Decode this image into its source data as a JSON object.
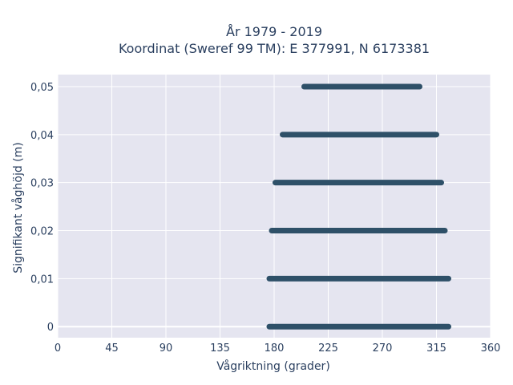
{
  "chart_data": {
    "type": "scatter",
    "title": "År 1979 - 2019",
    "subtitle": "Koordinat (Sweref 99 TM): E 377991, N 6173381",
    "xlabel": "Vågriktning (grader)",
    "ylabel": "Signifikant våghöjd (m)",
    "xlim": [
      0,
      360
    ],
    "ylim": [
      -0.0023,
      0.0525
    ],
    "x_ticks": [
      0,
      45,
      90,
      135,
      180,
      225,
      270,
      315,
      360
    ],
    "x_tick_labels": [
      "0",
      "45",
      "90",
      "135",
      "180",
      "225",
      "270",
      "315",
      "360"
    ],
    "y_ticks": [
      0,
      0.01,
      0.02,
      0.03,
      0.04,
      0.05
    ],
    "y_tick_labels": [
      "0",
      "0,01",
      "0,02",
      "0,03",
      "0,04",
      "0,05"
    ],
    "grid": true,
    "marker_color": "#2e5068",
    "bands": [
      {
        "y": 0,
        "x_min": 176,
        "x_max": 325
      },
      {
        "y": 0.01,
        "x_min": 176,
        "x_max": 325
      },
      {
        "y": 0.02,
        "x_min": 178,
        "x_max": 322
      },
      {
        "y": 0.03,
        "x_min": 181,
        "x_max": 319
      },
      {
        "y": 0.04,
        "x_min": 187,
        "x_max": 315
      },
      {
        "y": 0.05,
        "x_min": 205,
        "x_max": 301
      }
    ]
  }
}
